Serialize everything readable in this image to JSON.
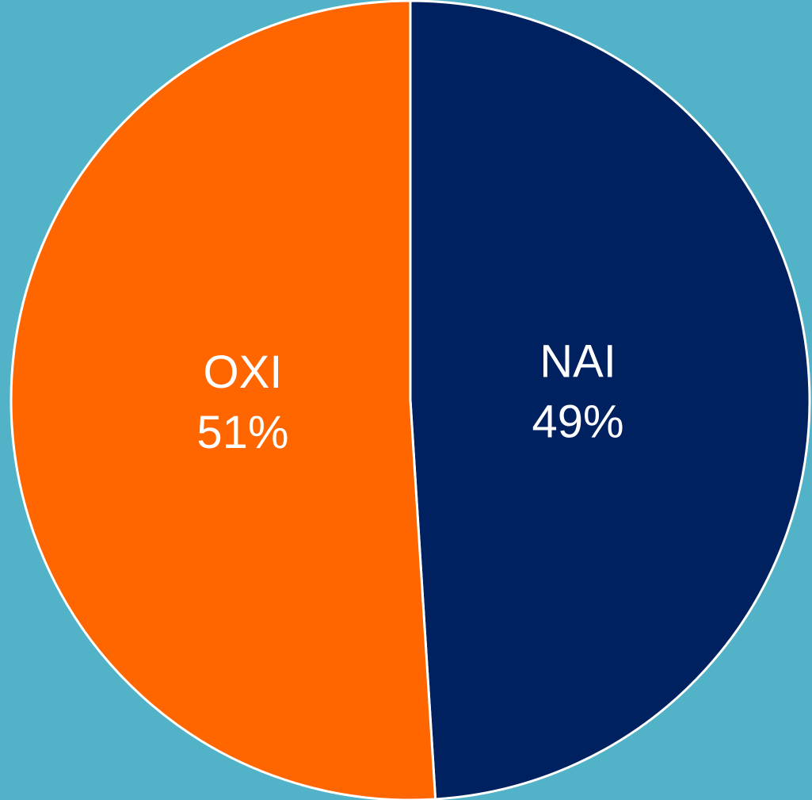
{
  "chart_data": {
    "type": "pie",
    "categories": [
      "NAI",
      "OXI"
    ],
    "values": [
      49,
      51
    ],
    "value_labels": [
      "49%",
      "51%"
    ],
    "colors": [
      "#00215f",
      "#ff6600"
    ]
  }
}
